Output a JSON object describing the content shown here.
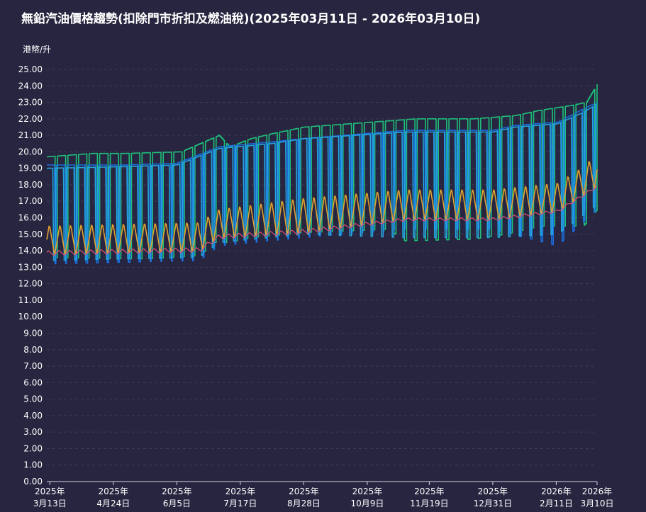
{
  "title": "無鉛汽油價格趨勢(扣除門市折扣及燃油稅)(2025年03月11日 - 2026年03月10日)",
  "chart_data": {
    "type": "line",
    "title": "無鉛汽油價格趨勢(扣除門市折扣及燃油稅)(2025年03月11日 - 2026年03月10日)",
    "ylabel": "港幣/升",
    "xlabel": "",
    "ylim": [
      0,
      25
    ],
    "yticks": [
      "0.00",
      "1.00",
      "2.00",
      "3.00",
      "4.00",
      "5.00",
      "6.00",
      "7.00",
      "8.00",
      "9.00",
      "10.00",
      "11.00",
      "12.00",
      "13.00",
      "14.00",
      "15.00",
      "16.00",
      "17.00",
      "18.00",
      "19.00",
      "20.00",
      "21.00",
      "22.00",
      "23.00",
      "24.00",
      "25.00"
    ],
    "x_range": [
      "2025-03-11",
      "2026-03-10"
    ],
    "x_ticks": [
      {
        "date": "2025-03-13",
        "year": "2025年",
        "day": "3月13日"
      },
      {
        "date": "2025-04-24",
        "year": "2025年",
        "day": "4月24日"
      },
      {
        "date": "2025-06-05",
        "year": "2025年",
        "day": "6月5日"
      },
      {
        "date": "2025-07-17",
        "year": "2025年",
        "day": "7月17日"
      },
      {
        "date": "2025-08-28",
        "year": "2025年",
        "day": "8月28日"
      },
      {
        "date": "2025-10-09",
        "year": "2025年",
        "day": "10月9日"
      },
      {
        "date": "2025-11-19",
        "year": "2025年",
        "day": "11月19日"
      },
      {
        "date": "2025-12-31",
        "year": "2025年",
        "day": "12月31日"
      },
      {
        "date": "2026-02-11",
        "year": "2026年",
        "day": "2月11日"
      },
      {
        "date": "2026-03-10",
        "year": "2026年",
        "day": "3月10日"
      }
    ],
    "grid": true,
    "legend": "none",
    "series": [
      {
        "color": "#1fbf7a",
        "style": "step",
        "oscillation_period_days": 7,
        "high": [
          {
            "date": "2025-03-11",
            "value": 19.7
          },
          {
            "date": "2025-04-10",
            "value": 19.9
          },
          {
            "date": "2025-05-01",
            "value": 19.9
          },
          {
            "date": "2025-06-08",
            "value": 20.0
          },
          {
            "date": "2025-07-03",
            "value": 21.0
          },
          {
            "date": "2025-07-10",
            "value": 20.3
          },
          {
            "date": "2025-07-24",
            "value": 20.8
          },
          {
            "date": "2025-08-07",
            "value": 21.1
          },
          {
            "date": "2025-08-28",
            "value": 21.5
          },
          {
            "date": "2025-11-10",
            "value": 22.0
          },
          {
            "date": "2025-12-18",
            "value": 22.0
          },
          {
            "date": "2026-01-15",
            "value": 22.2
          },
          {
            "date": "2026-01-30",
            "value": 22.5
          },
          {
            "date": "2026-02-20",
            "value": 22.8
          },
          {
            "date": "2026-03-03",
            "value": 23.0
          },
          {
            "date": "2026-03-10",
            "value": 24.1
          }
        ],
        "low": [
          {
            "date": "2025-03-11",
            "value": 13.6
          },
          {
            "date": "2025-05-15",
            "value": 13.5
          },
          {
            "date": "2025-06-20",
            "value": 13.7
          },
          {
            "date": "2025-06-30",
            "value": 14.5
          },
          {
            "date": "2025-07-10",
            "value": 14.5
          },
          {
            "date": "2025-07-24",
            "value": 14.8
          },
          {
            "date": "2025-08-28",
            "value": 15.1
          },
          {
            "date": "2025-10-23",
            "value": 15.3
          },
          {
            "date": "2025-11-03",
            "value": 14.6
          },
          {
            "date": "2025-12-18",
            "value": 14.7
          },
          {
            "date": "2026-01-08",
            "value": 15.0
          },
          {
            "date": "2026-02-01",
            "value": 15.5
          },
          {
            "date": "2026-03-01",
            "value": 15.5
          },
          {
            "date": "2026-03-10",
            "value": 16.5
          }
        ]
      },
      {
        "color": "#1a6fe0",
        "style": "line",
        "oscillation_period_days": 7,
        "high": [
          {
            "date": "2025-03-11",
            "value": 19.2
          },
          {
            "date": "2025-05-01",
            "value": 19.2
          },
          {
            "date": "2025-06-05",
            "value": 19.3
          },
          {
            "date": "2025-07-03",
            "value": 20.3
          },
          {
            "date": "2025-08-07",
            "value": 20.6
          },
          {
            "date": "2025-08-28",
            "value": 20.8
          },
          {
            "date": "2025-11-03",
            "value": 21.3
          },
          {
            "date": "2025-12-31",
            "value": 21.3
          },
          {
            "date": "2026-01-15",
            "value": 21.6
          },
          {
            "date": "2026-02-12",
            "value": 21.8
          },
          {
            "date": "2026-03-01",
            "value": 22.6
          },
          {
            "date": "2026-03-10",
            "value": 23.0
          }
        ],
        "low": [
          {
            "date": "2025-03-11",
            "value": 13.2
          },
          {
            "date": "2025-06-20",
            "value": 13.4
          },
          {
            "date": "2025-07-03",
            "value": 14.3
          },
          {
            "date": "2025-08-28",
            "value": 14.8
          },
          {
            "date": "2025-11-03",
            "value": 15.3
          },
          {
            "date": "2025-12-31",
            "value": 15.3
          },
          {
            "date": "2026-02-12",
            "value": 14.3
          },
          {
            "date": "2026-03-10",
            "value": 16.5
          }
        ]
      },
      {
        "color": "#25a4dc",
        "style": "line",
        "oscillation_period_days": 7,
        "high": [
          {
            "date": "2025-03-11",
            "value": 19.0
          },
          {
            "date": "2025-05-01",
            "value": 19.1
          },
          {
            "date": "2025-06-05",
            "value": 19.2
          },
          {
            "date": "2025-07-03",
            "value": 20.2
          },
          {
            "date": "2025-08-07",
            "value": 20.5
          },
          {
            "date": "2025-08-28",
            "value": 20.8
          },
          {
            "date": "2025-11-03",
            "value": 21.2
          },
          {
            "date": "2025-12-31",
            "value": 21.2
          },
          {
            "date": "2026-01-15",
            "value": 21.5
          },
          {
            "date": "2026-02-12",
            "value": 21.7
          },
          {
            "date": "2026-03-01",
            "value": 22.4
          },
          {
            "date": "2026-03-10",
            "value": 22.9
          }
        ],
        "low": [
          {
            "date": "2025-03-11",
            "value": 13.4
          },
          {
            "date": "2025-06-20",
            "value": 13.6
          },
          {
            "date": "2025-07-03",
            "value": 14.5
          },
          {
            "date": "2025-08-28",
            "value": 15.0
          },
          {
            "date": "2025-11-03",
            "value": 14.8
          },
          {
            "date": "2025-12-31",
            "value": 14.8
          },
          {
            "date": "2026-02-12",
            "value": 15.0
          },
          {
            "date": "2026-03-10",
            "value": 16.8
          }
        ]
      },
      {
        "color": "#e0a030",
        "style": "line",
        "oscillation_period_days": 7,
        "high": [
          {
            "date": "2025-03-11",
            "value": 15.6
          },
          {
            "date": "2025-06-20",
            "value": 15.8
          },
          {
            "date": "2025-07-03",
            "value": 16.6
          },
          {
            "date": "2025-08-28",
            "value": 17.3
          },
          {
            "date": "2025-11-03",
            "value": 17.8
          },
          {
            "date": "2025-12-31",
            "value": 17.8
          },
          {
            "date": "2026-02-12",
            "value": 18.2
          },
          {
            "date": "2026-03-01",
            "value": 19.2
          },
          {
            "date": "2026-03-10",
            "value": 20.0
          }
        ],
        "low": [
          {
            "date": "2025-03-11",
            "value": 13.7
          },
          {
            "date": "2025-06-20",
            "value": 13.9
          },
          {
            "date": "2025-07-03",
            "value": 14.7
          },
          {
            "date": "2025-08-28",
            "value": 15.0
          },
          {
            "date": "2025-11-03",
            "value": 15.8
          },
          {
            "date": "2025-12-31",
            "value": 15.8
          },
          {
            "date": "2026-02-12",
            "value": 16.3
          },
          {
            "date": "2026-03-10",
            "value": 17.8
          }
        ]
      },
      {
        "color": "#e0506e",
        "style": "line",
        "oscillation_period_days": 7,
        "high": [
          {
            "date": "2025-03-11",
            "value": 14.0
          },
          {
            "date": "2025-06-20",
            "value": 14.2
          },
          {
            "date": "2025-07-03",
            "value": 15.0
          },
          {
            "date": "2025-08-28",
            "value": 15.3
          },
          {
            "date": "2025-11-03",
            "value": 16.0
          },
          {
            "date": "2025-12-31",
            "value": 16.0
          },
          {
            "date": "2026-02-12",
            "value": 16.5
          },
          {
            "date": "2026-03-10",
            "value": 18.0
          }
        ],
        "low": [
          {
            "date": "2025-03-11",
            "value": 13.7
          },
          {
            "date": "2025-06-20",
            "value": 13.9
          },
          {
            "date": "2025-07-03",
            "value": 14.7
          },
          {
            "date": "2025-08-28",
            "value": 15.0
          },
          {
            "date": "2025-11-03",
            "value": 15.8
          },
          {
            "date": "2025-12-31",
            "value": 15.8
          },
          {
            "date": "2026-02-12",
            "value": 16.3
          },
          {
            "date": "2026-03-10",
            "value": 17.8
          }
        ]
      }
    ]
  }
}
